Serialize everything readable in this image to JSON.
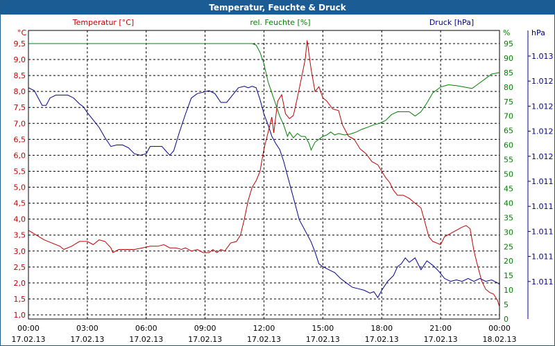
{
  "window": {
    "title": "Temperatur, Feuchte & Druck"
  },
  "colors": {
    "temperature": "#c00000",
    "humidity": "#008000",
    "pressure": "#00008b",
    "grid": "#000000",
    "title_bar": "#1b5c95"
  },
  "chart_data": {
    "type": "line",
    "title": "Temperatur, Feuchte & Druck",
    "grid": true,
    "x_ticks": [
      {
        "time": "00:00",
        "date": "17.02.13"
      },
      {
        "time": "03:00",
        "date": "17.02.13"
      },
      {
        "time": "06:00",
        "date": "17.02.13"
      },
      {
        "time": "09:00",
        "date": "17.02.13"
      },
      {
        "time": "12:00",
        "date": "17.02.13"
      },
      {
        "time": "15:00",
        "date": "17.02.13"
      },
      {
        "time": "18:00",
        "date": "17.02.13"
      },
      {
        "time": "21:00",
        "date": "17.02.13"
      },
      {
        "time": "00:00",
        "date": "18.02.13"
      }
    ],
    "x_range_hours": [
      0,
      24
    ],
    "axes": {
      "temperature": {
        "series_label": "Temperatur [°C]",
        "unit": "°C",
        "range": [
          1.0,
          9.5
        ],
        "ticks": [
          "1,0",
          "1,5",
          "2,0",
          "2,5",
          "3,0",
          "3,5",
          "4,0",
          "4,5",
          "5,0",
          "5,5",
          "6,0",
          "6,5",
          "7,0",
          "7,5",
          "8,0",
          "8,5",
          "9,0",
          "9,5"
        ]
      },
      "humidity": {
        "series_label": "rel. Feuchte [%]",
        "unit": "%",
        "range": [
          0,
          95
        ],
        "ticks": [
          "0",
          "5",
          "10",
          "15",
          "20",
          "25",
          "30",
          "35",
          "40",
          "45",
          "50",
          "55",
          "60",
          "65",
          "70",
          "75",
          "80",
          "85",
          "90",
          "95"
        ]
      },
      "pressure": {
        "series_label": "Druck [hPa]",
        "unit": "hPa",
        "ticks": [
          "1.013",
          "1.012",
          "1.012",
          "1.012",
          "1.012",
          "1.011",
          "1.011",
          "1.011",
          "1.011",
          "1.011"
        ]
      }
    },
    "series": [
      {
        "name": "Temperatur [°C]",
        "axis": "temperature",
        "points": [
          [
            0,
            3.65
          ],
          [
            0.4,
            3.5
          ],
          [
            0.8,
            3.35
          ],
          [
            1.2,
            3.25
          ],
          [
            1.6,
            3.15
          ],
          [
            1.8,
            3.05
          ],
          [
            2.2,
            3.15
          ],
          [
            2.6,
            3.3
          ],
          [
            3,
            3.3
          ],
          [
            3.3,
            3.2
          ],
          [
            3.6,
            3.35
          ],
          [
            3.9,
            3.3
          ],
          [
            4.2,
            3.1
          ],
          [
            4.3,
            2.95
          ],
          [
            4.6,
            3.05
          ],
          [
            5,
            3.05
          ],
          [
            5.4,
            3.05
          ],
          [
            5.8,
            3.1
          ],
          [
            6.2,
            3.15
          ],
          [
            6.6,
            3.15
          ],
          [
            6.9,
            3.2
          ],
          [
            7.2,
            3.1
          ],
          [
            7.5,
            3.1
          ],
          [
            7.8,
            3.05
          ],
          [
            8,
            3.1
          ],
          [
            8.3,
            3.0
          ],
          [
            8.6,
            3.05
          ],
          [
            8.9,
            2.95
          ],
          [
            9.2,
            2.95
          ],
          [
            9.4,
            3.05
          ],
          [
            9.6,
            2.95
          ],
          [
            9.8,
            3.05
          ],
          [
            10,
            3.0
          ],
          [
            10.3,
            3.25
          ],
          [
            10.6,
            3.3
          ],
          [
            10.8,
            3.5
          ],
          [
            11,
            4.0
          ],
          [
            11.2,
            4.6
          ],
          [
            11.4,
            5.0
          ],
          [
            11.6,
            5.2
          ],
          [
            11.8,
            5.5
          ],
          [
            12,
            6.2
          ],
          [
            12.2,
            6.7
          ],
          [
            12.4,
            7.2
          ],
          [
            12.5,
            6.7
          ],
          [
            12.7,
            7.7
          ],
          [
            12.9,
            7.9
          ],
          [
            13.1,
            7.3
          ],
          [
            13.3,
            7.15
          ],
          [
            13.5,
            7.25
          ],
          [
            13.7,
            7.8
          ],
          [
            13.9,
            8.4
          ],
          [
            14.1,
            9.0
          ],
          [
            14.2,
            9.6
          ],
          [
            14.4,
            8.7
          ],
          [
            14.6,
            8.0
          ],
          [
            14.8,
            8.15
          ],
          [
            15,
            7.8
          ],
          [
            15.2,
            7.7
          ],
          [
            15.5,
            7.45
          ],
          [
            15.8,
            7.4
          ],
          [
            16,
            6.95
          ],
          [
            16.3,
            6.6
          ],
          [
            16.6,
            6.5
          ],
          [
            16.9,
            6.2
          ],
          [
            17.2,
            6.05
          ],
          [
            17.5,
            5.8
          ],
          [
            17.8,
            5.7
          ],
          [
            18,
            5.5
          ],
          [
            18.2,
            5.3
          ],
          [
            18.4,
            5.15
          ],
          [
            18.6,
            4.9
          ],
          [
            18.8,
            4.75
          ],
          [
            19.1,
            4.75
          ],
          [
            19.4,
            4.65
          ],
          [
            19.7,
            4.5
          ],
          [
            20,
            4.35
          ],
          [
            20.2,
            3.9
          ],
          [
            20.4,
            3.45
          ],
          [
            20.6,
            3.3
          ],
          [
            20.8,
            3.25
          ],
          [
            21,
            3.2
          ],
          [
            21.2,
            3.45
          ],
          [
            21.5,
            3.55
          ],
          [
            21.8,
            3.65
          ],
          [
            22.1,
            3.75
          ],
          [
            22.3,
            3.8
          ],
          [
            22.5,
            3.7
          ],
          [
            22.7,
            3.0
          ],
          [
            22.9,
            2.5
          ],
          [
            23.1,
            2.05
          ],
          [
            23.3,
            1.8
          ],
          [
            23.5,
            1.7
          ],
          [
            23.7,
            1.65
          ],
          [
            23.9,
            1.45
          ],
          [
            24,
            1.25
          ]
        ]
      },
      {
        "name": "rel. Feuchte [%]",
        "axis": "humidity",
        "points": [
          [
            0,
            95
          ],
          [
            11.4,
            95
          ],
          [
            11.6,
            94.5
          ],
          [
            11.8,
            92
          ],
          [
            12,
            88
          ],
          [
            12.2,
            82
          ],
          [
            12.4,
            78
          ],
          [
            12.6,
            74
          ],
          [
            12.8,
            70
          ],
          [
            13,
            67
          ],
          [
            13.2,
            63
          ],
          [
            13.3,
            64.5
          ],
          [
            13.5,
            62.5
          ],
          [
            13.7,
            64
          ],
          [
            13.9,
            63
          ],
          [
            14.1,
            63
          ],
          [
            14.3,
            60.5
          ],
          [
            14.4,
            58.3
          ],
          [
            14.6,
            61
          ],
          [
            14.8,
            62
          ],
          [
            15,
            63
          ],
          [
            15.2,
            63.5
          ],
          [
            15.4,
            64.5
          ],
          [
            15.6,
            63.5
          ],
          [
            15.8,
            64
          ],
          [
            16.1,
            63.5
          ],
          [
            16.4,
            63.8
          ],
          [
            16.7,
            64.5
          ],
          [
            17,
            65.5
          ],
          [
            17.3,
            66.2
          ],
          [
            17.6,
            67
          ],
          [
            17.9,
            67.5
          ],
          [
            18.2,
            68.5
          ],
          [
            18.5,
            70.5
          ],
          [
            18.8,
            71.5
          ],
          [
            19.1,
            71.5
          ],
          [
            19.4,
            71.5
          ],
          [
            19.7,
            70
          ],
          [
            20,
            71.5
          ],
          [
            20.3,
            74.5
          ],
          [
            20.6,
            78
          ],
          [
            21,
            80
          ],
          [
            21.4,
            80.8
          ],
          [
            21.8,
            80.5
          ],
          [
            22.2,
            80
          ],
          [
            22.6,
            79.5
          ],
          [
            23,
            81.5
          ],
          [
            23.3,
            83
          ],
          [
            23.6,
            84.5
          ],
          [
            24,
            85
          ]
        ]
      },
      {
        "name": "Druck [hPa]",
        "axis": "pressure",
        "scale_note": "axis ticks 1.011–1.013",
        "points": [
          [
            0,
            60
          ],
          [
            0.3,
            58
          ],
          [
            0.5,
            53
          ],
          [
            0.7,
            48
          ],
          [
            0.9,
            48
          ],
          [
            1.1,
            53
          ],
          [
            1.4,
            55
          ],
          [
            1.7,
            55
          ],
          [
            2,
            55
          ],
          [
            2.3,
            53
          ],
          [
            2.6,
            49
          ],
          [
            2.8,
            47
          ],
          [
            3,
            43
          ],
          [
            3.3,
            38
          ],
          [
            3.6,
            33
          ],
          [
            3.9,
            26
          ],
          [
            4.2,
            20
          ],
          [
            4.5,
            21
          ],
          [
            4.8,
            21
          ],
          [
            5.1,
            19
          ],
          [
            5.4,
            15
          ],
          [
            5.7,
            14
          ],
          [
            6,
            15
          ],
          [
            6.2,
            20
          ],
          [
            6.5,
            20
          ],
          [
            6.8,
            20
          ],
          [
            7,
            17
          ],
          [
            7.2,
            14
          ],
          [
            7.4,
            17
          ],
          [
            7.7,
            30
          ],
          [
            8,
            42
          ],
          [
            8.3,
            53
          ],
          [
            8.6,
            56
          ],
          [
            8.9,
            57
          ],
          [
            9.2,
            58
          ],
          [
            9.5,
            56
          ],
          [
            9.8,
            50
          ],
          [
            10.1,
            50
          ],
          [
            10.4,
            55
          ],
          [
            10.7,
            60
          ],
          [
            11,
            61
          ],
          [
            11.2,
            60
          ],
          [
            11.4,
            61
          ],
          [
            11.6,
            60
          ],
          [
            11.8,
            52
          ],
          [
            12,
            42
          ],
          [
            12.2,
            35
          ],
          [
            12.4,
            27
          ],
          [
            12.6,
            22
          ],
          [
            12.8,
            18
          ],
          [
            13,
            10
          ],
          [
            13.2,
            0
          ],
          [
            13.4,
            -10
          ],
          [
            13.6,
            -20
          ],
          [
            13.8,
            -30
          ],
          [
            14,
            -35
          ],
          [
            14.2,
            -40
          ],
          [
            14.4,
            -45
          ],
          [
            14.6,
            -52
          ],
          [
            14.8,
            -60
          ],
          [
            15,
            -62
          ],
          [
            15.3,
            -64
          ],
          [
            15.6,
            -66
          ],
          [
            15.9,
            -70
          ],
          [
            16.2,
            -73
          ],
          [
            16.5,
            -76
          ],
          [
            16.8,
            -77
          ],
          [
            17.1,
            -78
          ],
          [
            17.4,
            -80
          ],
          [
            17.6,
            -79
          ],
          [
            17.8,
            -83
          ],
          [
            18,
            -78
          ],
          [
            18.3,
            -72
          ],
          [
            18.6,
            -68
          ],
          [
            18.8,
            -62
          ],
          [
            19,
            -60
          ],
          [
            19.2,
            -56
          ],
          [
            19.4,
            -59
          ],
          [
            19.7,
            -56
          ],
          [
            20,
            -64
          ],
          [
            20.3,
            -58
          ],
          [
            20.6,
            -61
          ],
          [
            20.9,
            -65
          ],
          [
            21.2,
            -70
          ],
          [
            21.5,
            -72
          ],
          [
            21.8,
            -71
          ],
          [
            22.1,
            -72
          ],
          [
            22.4,
            -70
          ],
          [
            22.7,
            -72
          ],
          [
            23,
            -70
          ],
          [
            23.3,
            -72
          ],
          [
            23.6,
            -71
          ],
          [
            23.9,
            -73
          ],
          [
            24,
            -74
          ]
        ]
      }
    ]
  }
}
